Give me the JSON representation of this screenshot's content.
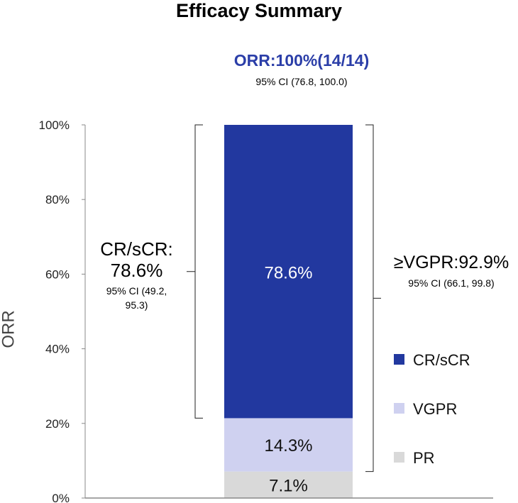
{
  "chart_data": {
    "type": "bar",
    "stacked": true,
    "title": "Efficacy Summary",
    "ylabel": "ORR",
    "ylim": [
      0,
      100
    ],
    "yticks": [
      "0%",
      "20%",
      "40%",
      "60%",
      "80%",
      "100%"
    ],
    "grid": false,
    "legend_position": "right",
    "series": [
      {
        "name": "PR",
        "value": 7.1,
        "label": "7.1%",
        "color": "#d9d9d9"
      },
      {
        "name": "VGPR",
        "value": 14.3,
        "label": "14.3%",
        "color": "#cfd1f0"
      },
      {
        "name": "CR/sCR",
        "value": 78.6,
        "label": "78.6%",
        "color": "#22389f"
      }
    ],
    "annotations": {
      "orr": {
        "text": "ORR:100%(14/14)",
        "ci": "95% CI (76.8, 100.0)",
        "color": "#2b3ea8"
      },
      "cr": {
        "line1": "CR/sCR:",
        "line2": "78.6%",
        "ci1": "95% CI (49.2,",
        "ci2": "95.3)",
        "range": [
          21.4,
          100
        ]
      },
      "vgpr": {
        "text": "≥VGPR:92.9%",
        "ci": "95% CI (66.1, 99.8)",
        "range": [
          7.1,
          100
        ]
      }
    },
    "legend": [
      "CR/sCR",
      "VGPR",
      "PR"
    ]
  }
}
